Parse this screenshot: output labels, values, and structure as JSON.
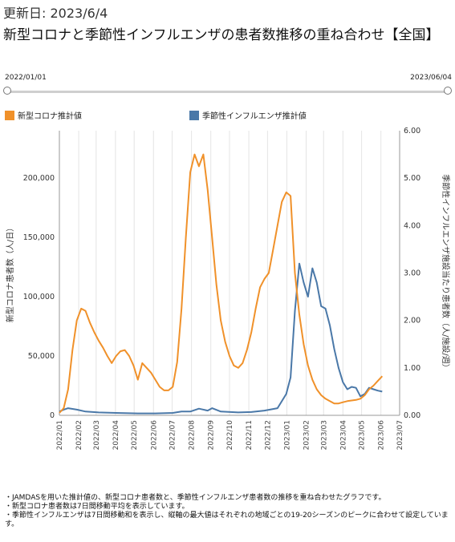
{
  "header": {
    "updated": "更新日: 2023/6/4",
    "title": "新型コロナと季節性インフルエンザの患者数推移の重ね合わせ【全国】"
  },
  "range_slider": {
    "start_label": "2022/01/01",
    "end_label": "2023/06/04"
  },
  "colors": {
    "covid": "#F0912A",
    "flu": "#4A78A8"
  },
  "chart_data": {
    "type": "line",
    "series": [
      {
        "name": "新型コロナ推計値",
        "axis": "left",
        "points": [
          [
            "2022-01-01",
            2000
          ],
          [
            "2022-01-08",
            6000
          ],
          [
            "2022-01-15",
            22000
          ],
          [
            "2022-01-22",
            55000
          ],
          [
            "2022-01-29",
            80000
          ],
          [
            "2022-02-05",
            90000
          ],
          [
            "2022-02-12",
            88000
          ],
          [
            "2022-02-19",
            78000
          ],
          [
            "2022-02-26",
            70000
          ],
          [
            "2022-03-05",
            63000
          ],
          [
            "2022-03-12",
            57000
          ],
          [
            "2022-03-19",
            50000
          ],
          [
            "2022-03-26",
            44000
          ],
          [
            "2022-04-02",
            50000
          ],
          [
            "2022-04-09",
            54000
          ],
          [
            "2022-04-16",
            55000
          ],
          [
            "2022-04-23",
            50000
          ],
          [
            "2022-04-30",
            42000
          ],
          [
            "2022-05-07",
            30000
          ],
          [
            "2022-05-14",
            44000
          ],
          [
            "2022-05-21",
            40000
          ],
          [
            "2022-05-28",
            36000
          ],
          [
            "2022-06-04",
            30000
          ],
          [
            "2022-06-11",
            24000
          ],
          [
            "2022-06-18",
            21000
          ],
          [
            "2022-06-25",
            21000
          ],
          [
            "2022-07-02",
            24000
          ],
          [
            "2022-07-09",
            45000
          ],
          [
            "2022-07-16",
            90000
          ],
          [
            "2022-07-23",
            150000
          ],
          [
            "2022-07-30",
            205000
          ],
          [
            "2022-08-06",
            220000
          ],
          [
            "2022-08-13",
            210000
          ],
          [
            "2022-08-20",
            220000
          ],
          [
            "2022-08-27",
            190000
          ],
          [
            "2022-09-03",
            150000
          ],
          [
            "2022-09-10",
            110000
          ],
          [
            "2022-09-17",
            80000
          ],
          [
            "2022-09-24",
            62000
          ],
          [
            "2022-10-01",
            50000
          ],
          [
            "2022-10-08",
            42000
          ],
          [
            "2022-10-15",
            40000
          ],
          [
            "2022-10-22",
            44000
          ],
          [
            "2022-10-29",
            55000
          ],
          [
            "2022-11-05",
            70000
          ],
          [
            "2022-11-12",
            90000
          ],
          [
            "2022-11-19",
            108000
          ],
          [
            "2022-11-26",
            115000
          ],
          [
            "2022-12-03",
            120000
          ],
          [
            "2022-12-10",
            140000
          ],
          [
            "2022-12-17",
            160000
          ],
          [
            "2022-12-24",
            180000
          ],
          [
            "2022-12-31",
            188000
          ],
          [
            "2023-01-07",
            185000
          ],
          [
            "2023-01-14",
            120000
          ],
          [
            "2023-01-21",
            85000
          ],
          [
            "2023-01-28",
            60000
          ],
          [
            "2023-02-04",
            42000
          ],
          [
            "2023-02-11",
            30000
          ],
          [
            "2023-02-18",
            22000
          ],
          [
            "2023-02-25",
            17000
          ],
          [
            "2023-03-04",
            14000
          ],
          [
            "2023-03-11",
            12000
          ],
          [
            "2023-03-18",
            10000
          ],
          [
            "2023-03-25",
            10000
          ],
          [
            "2023-04-01",
            11000
          ],
          [
            "2023-04-08",
            12000
          ],
          [
            "2023-04-15",
            12500
          ],
          [
            "2023-04-22",
            13000
          ],
          [
            "2023-04-29",
            14000
          ],
          [
            "2023-05-06",
            17000
          ],
          [
            "2023-05-13",
            22000
          ],
          [
            "2023-05-20",
            25000
          ],
          [
            "2023-05-27",
            29000
          ],
          [
            "2023-06-03",
            33000
          ]
        ]
      },
      {
        "name": "季節性インフルエンザ推計値",
        "axis": "right",
        "points": [
          [
            "2022-01-01",
            0.08
          ],
          [
            "2022-01-08",
            0.12
          ],
          [
            "2022-01-15",
            0.15
          ],
          [
            "2022-01-29",
            0.12
          ],
          [
            "2022-02-12",
            0.08
          ],
          [
            "2022-03-05",
            0.06
          ],
          [
            "2022-04-02",
            0.05
          ],
          [
            "2022-05-07",
            0.04
          ],
          [
            "2022-06-04",
            0.04
          ],
          [
            "2022-07-02",
            0.05
          ],
          [
            "2022-07-16",
            0.08
          ],
          [
            "2022-07-30",
            0.08
          ],
          [
            "2022-08-13",
            0.14
          ],
          [
            "2022-08-27",
            0.1
          ],
          [
            "2022-09-03",
            0.15
          ],
          [
            "2022-09-17",
            0.08
          ],
          [
            "2022-10-15",
            0.06
          ],
          [
            "2022-11-05",
            0.07
          ],
          [
            "2022-11-26",
            0.1
          ],
          [
            "2022-12-17",
            0.15
          ],
          [
            "2022-12-31",
            0.45
          ],
          [
            "2023-01-07",
            0.8
          ],
          [
            "2023-01-14",
            2.2
          ],
          [
            "2023-01-21",
            3.2
          ],
          [
            "2023-01-28",
            2.8
          ],
          [
            "2023-02-04",
            2.5
          ],
          [
            "2023-02-11",
            3.1
          ],
          [
            "2023-02-18",
            2.8
          ],
          [
            "2023-02-25",
            2.3
          ],
          [
            "2023-03-04",
            2.25
          ],
          [
            "2023-03-11",
            1.9
          ],
          [
            "2023-03-18",
            1.4
          ],
          [
            "2023-03-25",
            1.0
          ],
          [
            "2023-04-01",
            0.7
          ],
          [
            "2023-04-08",
            0.55
          ],
          [
            "2023-04-15",
            0.6
          ],
          [
            "2023-04-22",
            0.58
          ],
          [
            "2023-04-29",
            0.4
          ],
          [
            "2023-05-06",
            0.45
          ],
          [
            "2023-05-13",
            0.58
          ],
          [
            "2023-05-20",
            0.55
          ],
          [
            "2023-05-27",
            0.52
          ],
          [
            "2023-06-03",
            0.5
          ]
        ]
      }
    ],
    "ylabel_left": "新型コロナ患者数（人/日）",
    "ylabel_right": "季節性インフルエンザ施設当たり患者数（人/施設/週）",
    "ylim_left": [
      0,
      240000
    ],
    "ylim_right": [
      0,
      6
    ],
    "yticks_left": [
      "0",
      "50,000",
      "100,000",
      "150,000",
      "200,000"
    ],
    "yticks_right": [
      "0.00",
      "1.00",
      "2.00",
      "3.00",
      "4.00",
      "5.00",
      "6.00"
    ],
    "xlim": [
      "2022-01-01",
      "2023-07-01"
    ],
    "xtick_labels": [
      "2022/01",
      "2022/02",
      "2022/03",
      "2022/04",
      "2022/05",
      "2022/06",
      "2022/07",
      "2022/08",
      "2022/09",
      "2022/10",
      "2022/11",
      "2022/12",
      "2023/01",
      "2023/02",
      "2023/03",
      "2023/04",
      "2023/05",
      "2023/06",
      "2023/07"
    ],
    "grid": "vertical",
    "legend": "top-left"
  },
  "notes": [
    "・JAMDASを用いた推計値の、新型コロナ患者数と、季節性インフルエンザ患者数の推移を重ね合わせたグラフです。",
    "・新型コロナ患者数は7日間移動平均を表示しています。",
    "・季節性インフルエンザは7日間移動和を表示し、縦軸の最大値はそれぞれの地域ごとの19-20シーズンのピークに合わせて設定しています。"
  ]
}
